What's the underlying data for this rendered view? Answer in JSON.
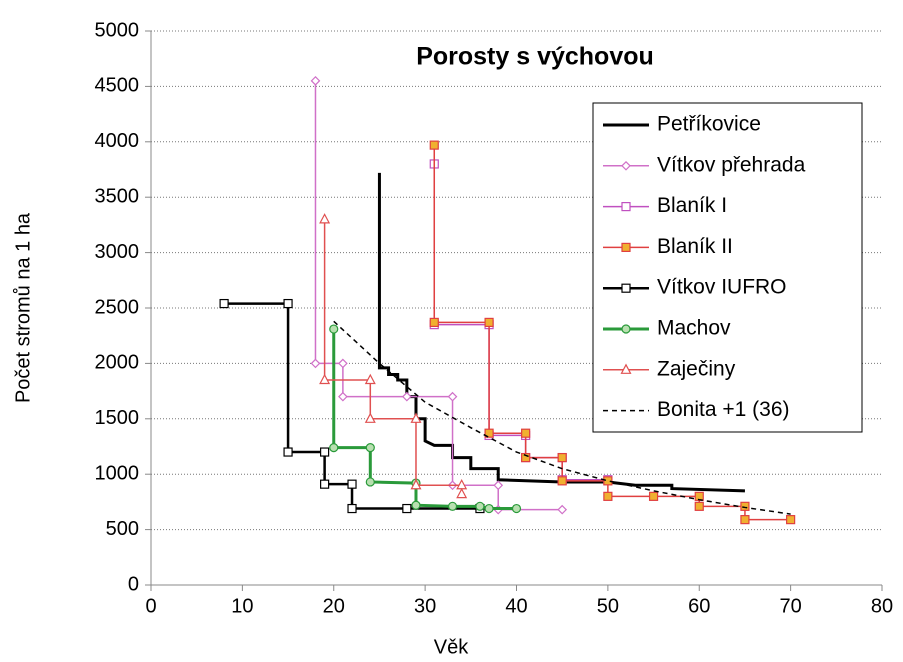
{
  "chart_data": {
    "type": "line",
    "title": "Porosty s výchovou",
    "x_label": "Věk",
    "y_label": "Počet stromů na 1 ha",
    "xlim": [
      0,
      80
    ],
    "xticks": [
      0,
      10,
      20,
      30,
      40,
      50,
      60,
      70,
      80
    ],
    "ylim": [
      0,
      5000
    ],
    "yticks": [
      0,
      500,
      1000,
      1500,
      2000,
      2500,
      3000,
      3500,
      4000,
      4500,
      5000
    ],
    "grid": true,
    "legend": "upper right",
    "series": [
      {
        "name": "Petříkovice",
        "color": "#000000",
        "width": 3,
        "marker": "none",
        "x": [
          25,
          25,
          26,
          26,
          27,
          27,
          28,
          28,
          29,
          29,
          30,
          30,
          31,
          33,
          33,
          35,
          35,
          38,
          38,
          45,
          50,
          53,
          57,
          57,
          65
        ],
        "values": [
          3720,
          1960,
          1960,
          1900,
          1900,
          1850,
          1850,
          1700,
          1700,
          1500,
          1500,
          1300,
          1260,
          1260,
          1150,
          1150,
          1050,
          1050,
          950,
          930,
          930,
          900,
          900,
          870,
          850
        ]
      },
      {
        "name": "Vítkov přehrada",
        "color": "#d070c8",
        "width": 1.5,
        "marker": "diamond",
        "marker_fill": "#ffffff",
        "x": [
          18,
          18,
          21,
          21,
          28,
          33,
          33,
          38,
          38,
          45
        ],
        "values": [
          4550,
          2000,
          2000,
          1700,
          1700,
          1700,
          900,
          900,
          680,
          680
        ]
      },
      {
        "name": "Blaník I",
        "color": "#c050c0",
        "width": 1.5,
        "marker": "square",
        "marker_fill": "#ffffff",
        "x": [
          31,
          31,
          37,
          37,
          41,
          41,
          45,
          45,
          50
        ],
        "values": [
          3800,
          2350,
          2350,
          1350,
          1350,
          1150,
          1150,
          950,
          950
        ]
      },
      {
        "name": "Blaník II",
        "color": "#e04040",
        "width": 1.5,
        "marker": "square",
        "marker_fill": "#f0b030",
        "x": [
          31,
          31,
          37,
          37,
          41,
          41,
          45,
          45,
          50,
          50,
          55,
          60,
          60,
          65,
          65,
          70
        ],
        "values": [
          3970,
          2370,
          2370,
          1370,
          1370,
          1150,
          1150,
          940,
          940,
          800,
          800,
          800,
          710,
          710,
          590,
          590
        ]
      },
      {
        "name": "Vítkov IUFRO",
        "color": "#000000",
        "width": 2.5,
        "marker": "square",
        "marker_fill": "#ffffff",
        "x": [
          8,
          15,
          15,
          19,
          19,
          22,
          22,
          28,
          36
        ],
        "values": [
          2540,
          2540,
          1200,
          1200,
          910,
          910,
          690,
          690,
          690
        ]
      },
      {
        "name": "Machov",
        "color": "#2a9a3a",
        "width": 3,
        "marker": "circle",
        "marker_fill": "#b8e0b0",
        "x": [
          20,
          20,
          24,
          24,
          29,
          29,
          33,
          36,
          37,
          40
        ],
        "values": [
          2310,
          1240,
          1240,
          930,
          920,
          720,
          710,
          710,
          690,
          690
        ]
      },
      {
        "name": "Zaječiny",
        "color": "#e05050",
        "width": 1.5,
        "marker": "triangle",
        "marker_fill": "#ffffff",
        "x": [
          19,
          19,
          24,
          24,
          29,
          29,
          34,
          34
        ],
        "values": [
          3300,
          1850,
          1850,
          1500,
          1500,
          900,
          900,
          820
        ]
      },
      {
        "name": "Bonita +1 (36)",
        "color": "#000000",
        "width": 1.5,
        "dash": "5,4",
        "marker": "none",
        "x": [
          20,
          25,
          30,
          35,
          40,
          45,
          50,
          55,
          60,
          65,
          70
        ],
        "values": [
          2380,
          2000,
          1650,
          1420,
          1200,
          1050,
          940,
          850,
          770,
          700,
          640
        ]
      }
    ]
  }
}
